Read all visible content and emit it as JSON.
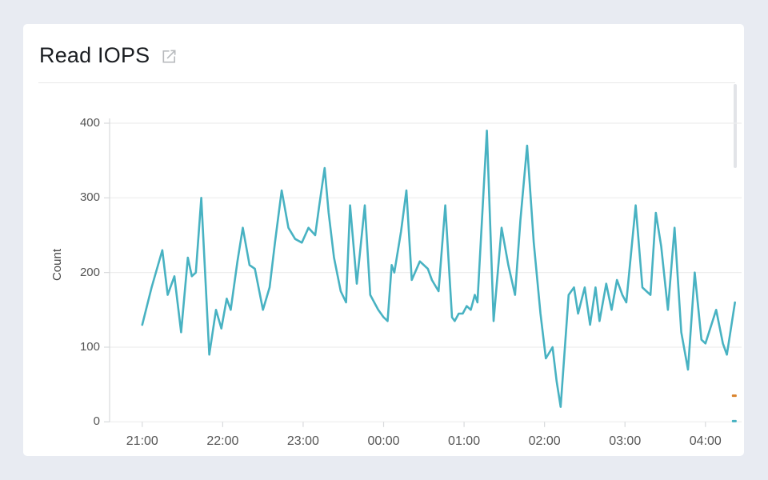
{
  "page": {
    "background": "#E8EBF2"
  },
  "card": {
    "background": "#FFFFFF"
  },
  "header": {
    "title": "Read IOPS",
    "open_link_icon": "external-link-icon"
  },
  "chart_data": {
    "type": "line",
    "title": "Read IOPS",
    "xlabel": "",
    "ylabel": "Count",
    "ylim": [
      0,
      400
    ],
    "yticks": [
      0,
      100,
      200,
      300,
      400
    ],
    "x_ticks": [
      {
        "label": "21:00",
        "minutes": 0
      },
      {
        "label": "22:00",
        "minutes": 60
      },
      {
        "label": "23:00",
        "minutes": 120
      },
      {
        "label": "00:00",
        "minutes": 180
      },
      {
        "label": "01:00",
        "minutes": 240
      },
      {
        "label": "02:00",
        "minutes": 300
      },
      {
        "label": "03:00",
        "minutes": 360
      },
      {
        "label": "04:00",
        "minutes": 420
      }
    ],
    "grid": "horizontal",
    "legend": "none",
    "colors": {
      "line": "#48B2C2",
      "grid": "#EDEDED",
      "axis": "#D8DADC",
      "tick_text": "#555555",
      "edge_mark_orange": "#D9822B"
    },
    "series_name": "Read IOPS count",
    "points_format": "[minutes_after_21:00, count]",
    "points": [
      [
        0,
        130
      ],
      [
        7,
        180
      ],
      [
        15,
        230
      ],
      [
        19,
        170
      ],
      [
        24,
        195
      ],
      [
        29,
        120
      ],
      [
        34,
        220
      ],
      [
        37,
        195
      ],
      [
        40,
        200
      ],
      [
        44,
        300
      ],
      [
        50,
        90
      ],
      [
        55,
        150
      ],
      [
        59,
        125
      ],
      [
        63,
        165
      ],
      [
        66,
        150
      ],
      [
        71,
        215
      ],
      [
        75,
        260
      ],
      [
        80,
        210
      ],
      [
        84,
        205
      ],
      [
        90,
        150
      ],
      [
        95,
        180
      ],
      [
        99,
        240
      ],
      [
        104,
        310
      ],
      [
        109,
        260
      ],
      [
        114,
        245
      ],
      [
        119,
        240
      ],
      [
        124,
        260
      ],
      [
        129,
        250
      ],
      [
        132,
        290
      ],
      [
        136,
        340
      ],
      [
        139,
        280
      ],
      [
        143,
        220
      ],
      [
        148,
        175
      ],
      [
        152,
        160
      ],
      [
        155,
        290
      ],
      [
        160,
        185
      ],
      [
        166,
        290
      ],
      [
        170,
        170
      ],
      [
        176,
        150
      ],
      [
        180,
        140
      ],
      [
        183,
        135
      ],
      [
        186,
        210
      ],
      [
        188,
        200
      ],
      [
        193,
        255
      ],
      [
        197,
        310
      ],
      [
        201,
        190
      ],
      [
        207,
        215
      ],
      [
        213,
        205
      ],
      [
        216,
        190
      ],
      [
        221,
        175
      ],
      [
        226,
        290
      ],
      [
        231,
        140
      ],
      [
        233,
        135
      ],
      [
        236,
        145
      ],
      [
        239,
        145
      ],
      [
        242,
        155
      ],
      [
        245,
        150
      ],
      [
        248,
        170
      ],
      [
        250,
        160
      ],
      [
        257,
        390
      ],
      [
        262,
        135
      ],
      [
        268,
        260
      ],
      [
        273,
        210
      ],
      [
        278,
        170
      ],
      [
        282,
        270
      ],
      [
        287,
        370
      ],
      [
        292,
        240
      ],
      [
        297,
        145
      ],
      [
        301,
        85
      ],
      [
        306,
        100
      ],
      [
        309,
        55
      ],
      [
        312,
        20
      ],
      [
        318,
        170
      ],
      [
        322,
        180
      ],
      [
        325,
        145
      ],
      [
        330,
        180
      ],
      [
        334,
        130
      ],
      [
        338,
        180
      ],
      [
        341,
        135
      ],
      [
        346,
        185
      ],
      [
        350,
        150
      ],
      [
        354,
        190
      ],
      [
        358,
        170
      ],
      [
        361,
        160
      ],
      [
        368,
        290
      ],
      [
        373,
        180
      ],
      [
        376,
        175
      ],
      [
        379,
        170
      ],
      [
        383,
        280
      ],
      [
        387,
        235
      ],
      [
        392,
        150
      ],
      [
        397,
        260
      ],
      [
        402,
        120
      ],
      [
        407,
        70
      ],
      [
        412,
        200
      ],
      [
        417,
        110
      ],
      [
        420,
        105
      ],
      [
        428,
        150
      ],
      [
        433,
        105
      ],
      [
        436,
        90
      ],
      [
        442,
        160
      ]
    ],
    "edge_marks": [
      {
        "minutes": 441.5,
        "value": 35,
        "color": "#D9822B"
      },
      {
        "minutes": 441.5,
        "value": 1,
        "color": "#48B2C2"
      }
    ]
  }
}
